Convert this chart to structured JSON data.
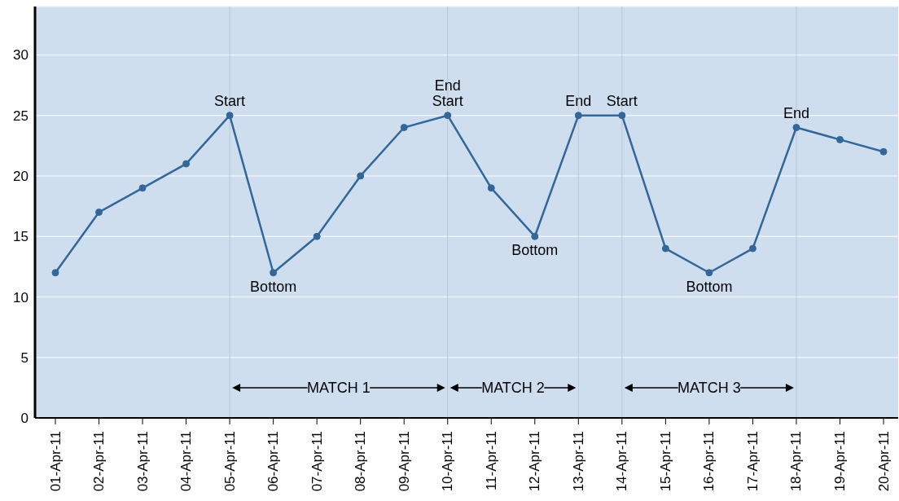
{
  "chart_data": {
    "type": "line",
    "categories": [
      "01-Apr-11",
      "02-Apr-11",
      "03-Apr-11",
      "04-Apr-11",
      "05-Apr-11",
      "06-Apr-11",
      "07-Apr-11",
      "08-Apr-11",
      "09-Apr-11",
      "10-Apr-11",
      "11-Apr-11",
      "12-Apr-11",
      "13-Apr-11",
      "14-Apr-11",
      "15-Apr-11",
      "16-Apr-11",
      "17-Apr-11",
      "18-Apr-11",
      "19-Apr-11",
      "20-Apr-11"
    ],
    "series": [
      {
        "color": "#336699",
        "values": [
          12,
          17,
          19,
          21,
          25,
          12,
          15,
          20,
          24,
          25,
          19,
          15,
          25,
          25,
          14,
          12,
          14,
          24,
          23,
          22
        ]
      }
    ],
    "ylim": [
      0,
      34
    ],
    "yticks": [
      0,
      5,
      10,
      15,
      20,
      25,
      30
    ],
    "grid": "y",
    "marker": "circle",
    "line_style": "solid",
    "annotations": [
      {
        "text": "Start",
        "x": "05-Apr-11",
        "y": 25
      },
      {
        "text": "Bottom",
        "x": "06-Apr-11",
        "y": 12
      },
      {
        "text": "Start",
        "x": "10-Apr-11",
        "y": 25
      },
      {
        "text": "End",
        "x": "10-Apr-11",
        "y": 25
      },
      {
        "text": "Bottom",
        "x": "12-Apr-11",
        "y": 15
      },
      {
        "text": "End",
        "x": "13-Apr-11",
        "y": 25
      },
      {
        "text": "Start",
        "x": "14-Apr-11",
        "y": 25
      },
      {
        "text": "Bottom",
        "x": "16-Apr-11",
        "y": 12
      },
      {
        "text": "End",
        "x": "18-Apr-11",
        "y": 24
      },
      "MATCH 1",
      "MATCH 2",
      "MATCH 3"
    ],
    "ref_lines": [
      {
        "axis": "x",
        "value": "05-Apr-11"
      },
      {
        "axis": "x",
        "value": "10-Apr-11"
      },
      {
        "axis": "x",
        "value": "13-Apr-11"
      },
      {
        "axis": "x",
        "value": "14-Apr-11"
      },
      {
        "axis": "x",
        "value": "18-Apr-11"
      }
    ]
  }
}
